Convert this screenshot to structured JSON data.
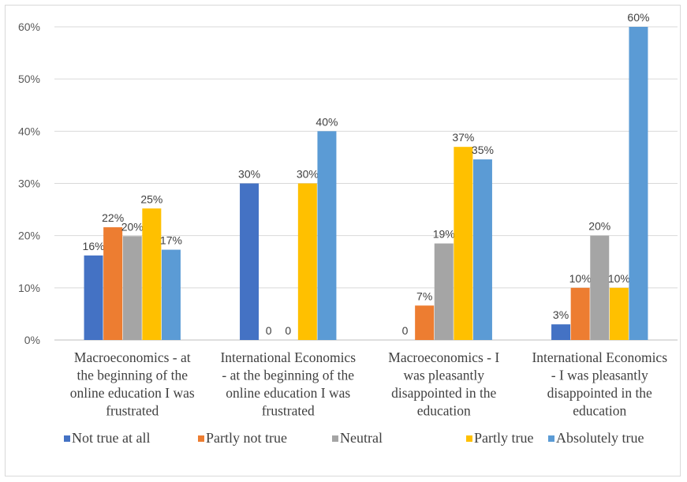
{
  "chart_data": {
    "type": "bar",
    "categories": [
      [
        "Macroeconomics - at",
        "the beginning of the",
        "online education I was",
        "frustrated"
      ],
      [
        "International Economics",
        "- at the beginning of the",
        "online education I was",
        "frustrated"
      ],
      [
        "Macroeconomics - I",
        "was pleasantly",
        "disappointed in the",
        "education"
      ],
      [
        "International Economics",
        "- I was pleasantly",
        "disappointed in the",
        "education"
      ]
    ],
    "series": [
      {
        "name": "Not true at all",
        "color": "#4472C4",
        "values": [
          16.2,
          30,
          0,
          3
        ],
        "labels": [
          "16%",
          "30%",
          "0",
          "3%"
        ]
      },
      {
        "name": "Partly not true",
        "color": "#ED7D31",
        "values": [
          21.6,
          0,
          6.6,
          10
        ],
        "labels": [
          "22%",
          "0",
          "7%",
          "10%"
        ]
      },
      {
        "name": "Neutral",
        "color": "#A5A5A5",
        "values": [
          19.9,
          0,
          18.5,
          20
        ],
        "labels": [
          "20%",
          "0",
          "19%",
          "20%"
        ]
      },
      {
        "name": "Partly true",
        "color": "#FFC000",
        "values": [
          25.2,
          30,
          37,
          10
        ],
        "labels": [
          "25%",
          "30%",
          "37%",
          "10%"
        ]
      },
      {
        "name": "Absolutely true",
        "color": "#5B9BD5",
        "values": [
          17.3,
          40,
          34.6,
          60
        ],
        "labels": [
          "17%",
          "40%",
          "35%",
          "60%"
        ]
      }
    ],
    "yticks": [
      "0%",
      "10%",
      "20%",
      "30%",
      "40%",
      "50%",
      "60%"
    ],
    "ylim": [
      0,
      60
    ],
    "grid": true,
    "legend": "bottom"
  }
}
